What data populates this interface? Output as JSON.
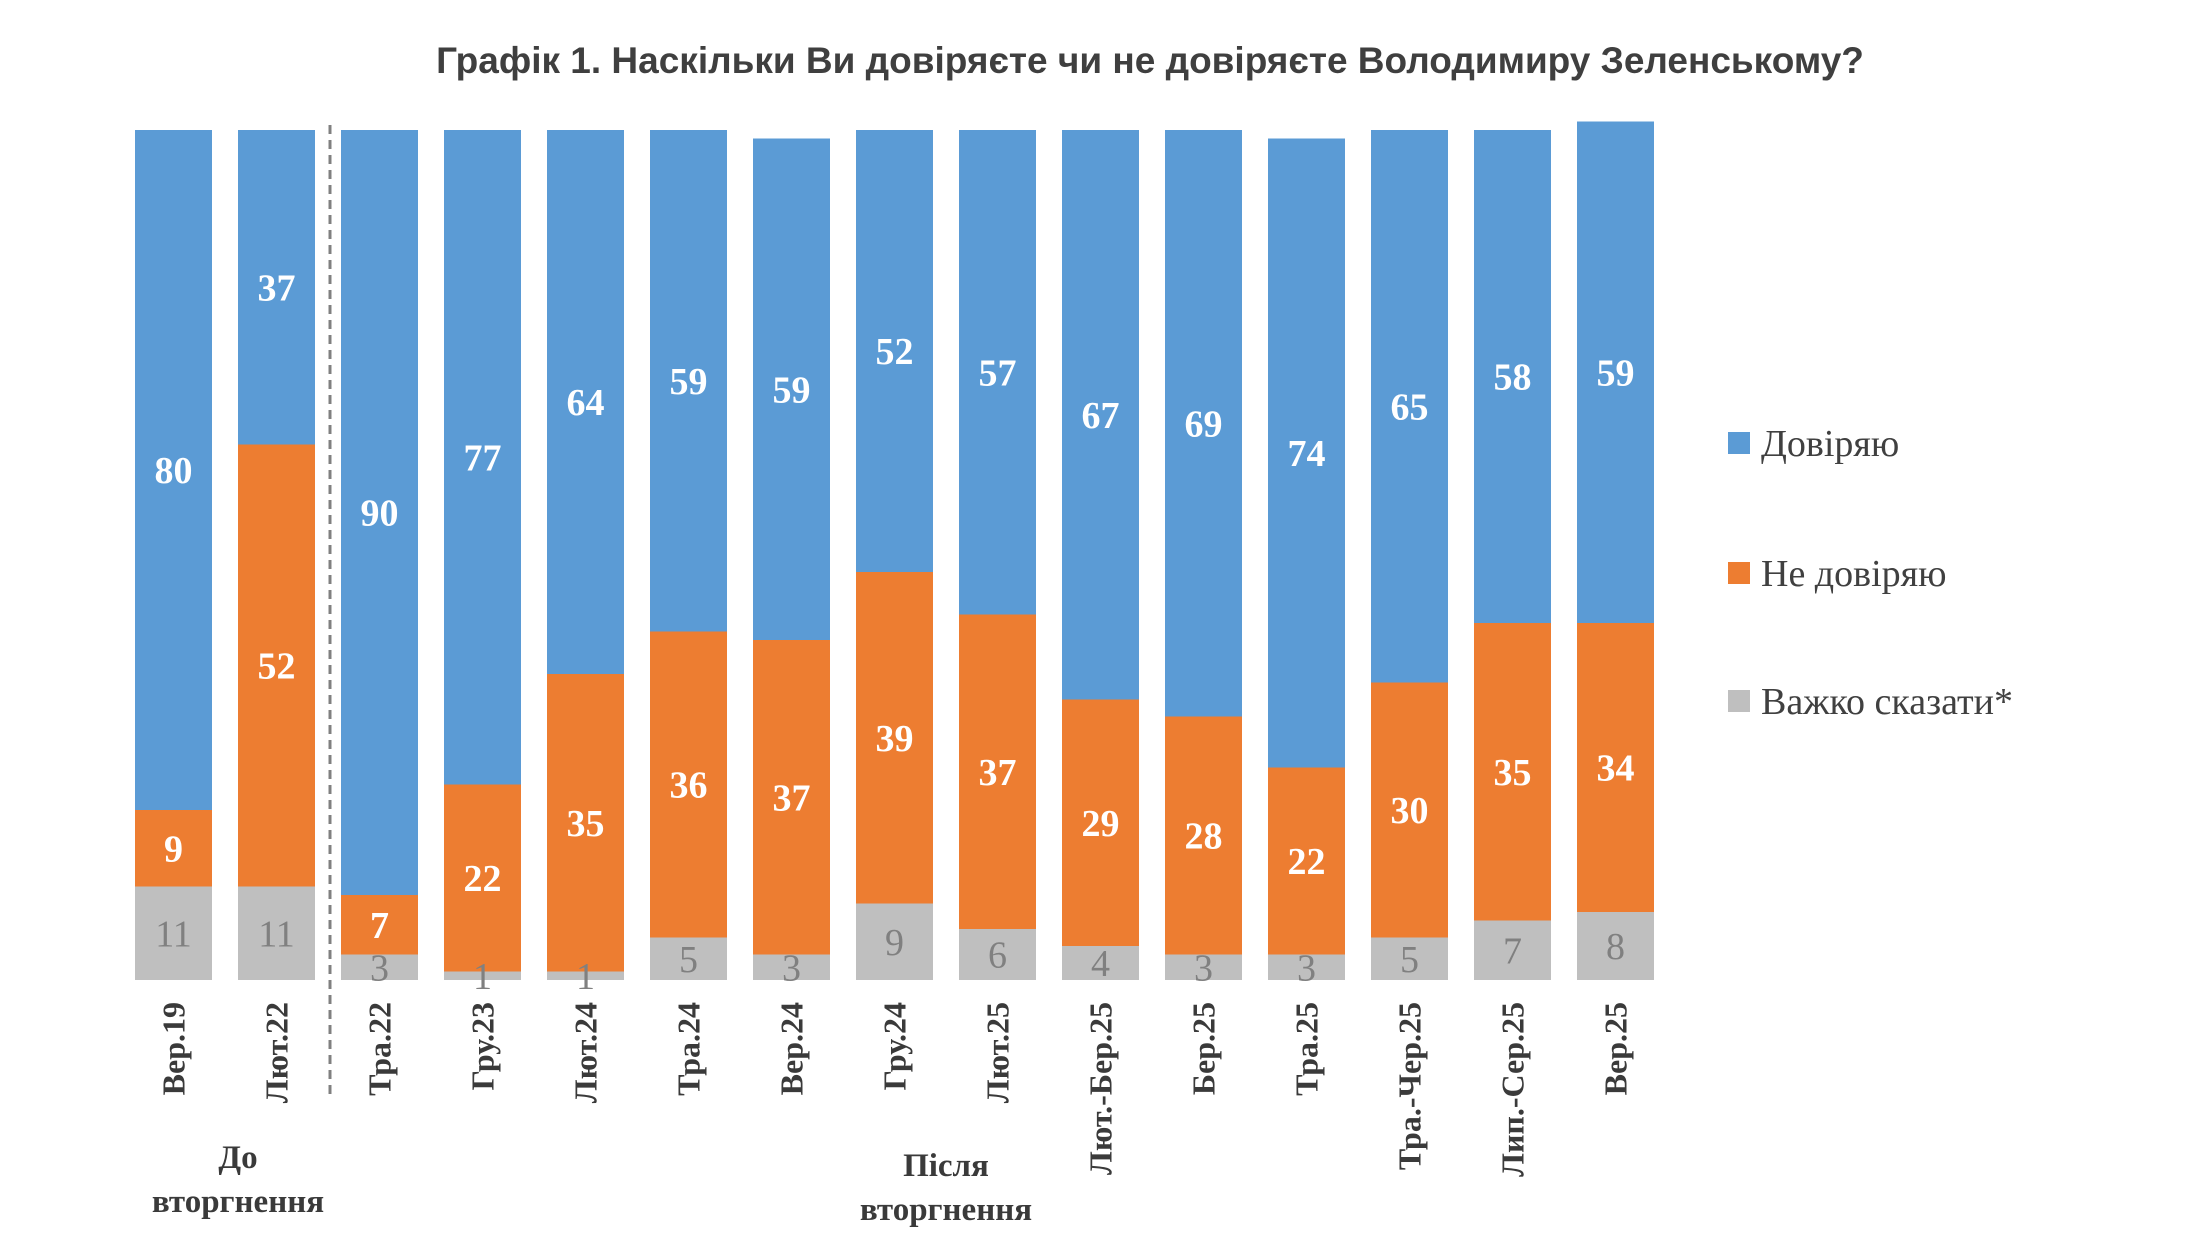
{
  "chart_data": {
    "type": "bar",
    "stacked": true,
    "title": "Графік 1. Наскільки Ви довіряєте чи не довіряєте Володимиру Зеленському?",
    "categories": [
      "Вер.19",
      "Лют.22",
      "Тра.22",
      "Гру.23",
      "Лют.24",
      "Тра.24",
      "Вер.24",
      "Гру.24",
      "Лют.25",
      "Лют.-Бер.25",
      "Бер.25",
      "Тра.25",
      "Тра.-Чер.25",
      "Лип.-Сер.25",
      "Вер.25"
    ],
    "series": [
      {
        "name": "Довіряю",
        "color": "#5b9bd5",
        "values": [
          80,
          37,
          90,
          77,
          64,
          59,
          59,
          52,
          57,
          67,
          69,
          74,
          65,
          58,
          59
        ]
      },
      {
        "name": "Не довіряю",
        "color": "#ed7d31",
        "values": [
          9,
          52,
          7,
          22,
          35,
          36,
          37,
          39,
          37,
          29,
          28,
          22,
          30,
          35,
          34
        ]
      },
      {
        "name": "Важко сказати*",
        "color": "#bfbfbf",
        "values": [
          11,
          11,
          3,
          1,
          1,
          5,
          3,
          9,
          6,
          4,
          3,
          3,
          5,
          7,
          8
        ]
      }
    ],
    "ylim": [
      0,
      100
    ],
    "grid": false,
    "legend_position": "right",
    "groups": [
      {
        "label_line1": "До",
        "label_line2": "вторгнення",
        "categories": [
          "Вер.19",
          "Лют.22"
        ]
      },
      {
        "label_line1": "Після",
        "label_line2": "вторгнення",
        "categories_from": "Тра.22"
      }
    ],
    "divider": "dashed line between Лют.22 and Тра.22"
  }
}
